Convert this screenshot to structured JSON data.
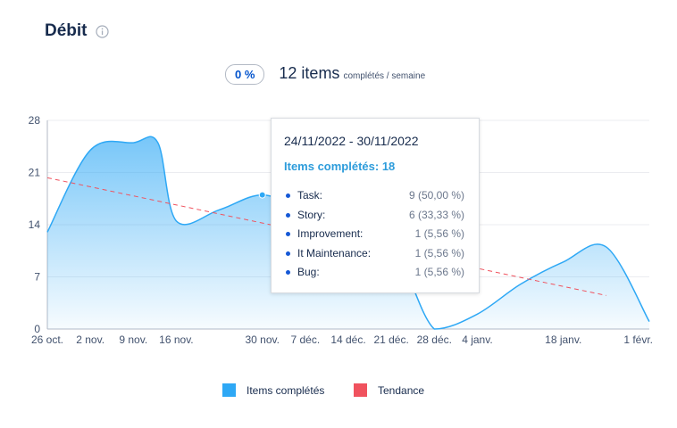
{
  "header": {
    "title": "Débit",
    "info_icon": "info-circle-icon"
  },
  "summary": {
    "percent": "0 %",
    "count": "12 items",
    "unit": "complétés / semaine"
  },
  "tooltip": {
    "date_range": "24/11/2022 - 30/11/2022",
    "total": "Items complétés: 18",
    "rows": [
      {
        "label": "Task:",
        "value": "9 (50,00 %)"
      },
      {
        "label": "Story:",
        "value": "6 (33,33 %)"
      },
      {
        "label": "Improvement:",
        "value": "1 (5,56 %)"
      },
      {
        "label": "It Maintenance:",
        "value": "1 (5,56 %)"
      },
      {
        "label": "Bug:",
        "value": "1 (5,56 %)"
      }
    ]
  },
  "legend": [
    {
      "label": "Items complétés",
      "color": "#2ea8f5"
    },
    {
      "label": "Tendance",
      "color": "#f0525e"
    }
  ],
  "chart_data": {
    "type": "area",
    "x_ticks": [
      "26 oct.",
      "2 nov.",
      "9 nov.",
      "16 nov.",
      "30 nov.",
      "7 déc.",
      "14 déc.",
      "21 déc.",
      "28 déc.",
      "4 janv.",
      "18 janv.",
      "1 févr."
    ],
    "y_ticks": [
      0,
      7,
      14,
      21,
      28
    ],
    "ylim": [
      0,
      28
    ],
    "xlim": [
      "2022-10-26",
      "2023-02-01"
    ],
    "grid": true,
    "legend_position": "bottom-center",
    "series": [
      {
        "name": "Items complétés",
        "color": "#2ea8f5",
        "x": [
          "2022-10-26",
          "2022-11-02",
          "2022-11-09",
          "2022-11-13",
          "2022-11-16",
          "2022-11-23",
          "2022-11-30",
          "2022-12-07",
          "2022-12-14",
          "2022-12-21",
          "2022-12-28",
          "2023-01-04",
          "2023-01-11",
          "2023-01-18",
          "2023-01-25",
          "2023-02-01"
        ],
        "values": [
          13,
          24,
          25,
          25,
          14.5,
          16,
          18,
          16,
          15,
          12,
          0,
          2,
          6,
          9,
          11,
          1
        ]
      },
      {
        "name": "Tendance",
        "color": "#f0525e",
        "dashed": true,
        "x": [
          "2022-10-26",
          "2023-01-25"
        ],
        "values": [
          20.3,
          4.5
        ]
      }
    ]
  }
}
